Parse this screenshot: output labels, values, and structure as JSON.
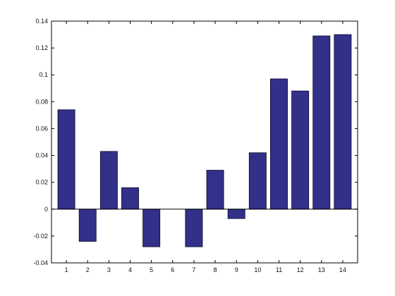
{
  "chart_data": {
    "type": "bar",
    "title": "",
    "xlabel": "",
    "ylabel": "",
    "categories": [
      "1",
      "2",
      "3",
      "4",
      "5",
      "6",
      "7",
      "8",
      "9",
      "10",
      "11",
      "12",
      "13",
      "14"
    ],
    "values": [
      0.074,
      -0.024,
      0.043,
      0.016,
      -0.028,
      0.0,
      -0.028,
      0.029,
      -0.007,
      0.042,
      0.097,
      0.088,
      0.129,
      0.13
    ],
    "ylim": [
      -0.04,
      0.14
    ],
    "yticks": [
      -0.04,
      -0.02,
      0,
      0.02,
      0.04,
      0.06,
      0.08,
      0.1,
      0.12,
      0.14
    ],
    "ytick_labels": [
      "-0.04",
      "-0.02",
      "0",
      "0.02",
      "0.04",
      "0.06",
      "0.08",
      "0.1",
      "0.12",
      "0.14"
    ],
    "xlim": [
      0.3,
      14.7
    ],
    "grid": false,
    "legend": "none",
    "colors": {
      "bar_fill": "#33308a",
      "bar_stroke": "#0a0a2a",
      "axis": "#000000"
    }
  }
}
